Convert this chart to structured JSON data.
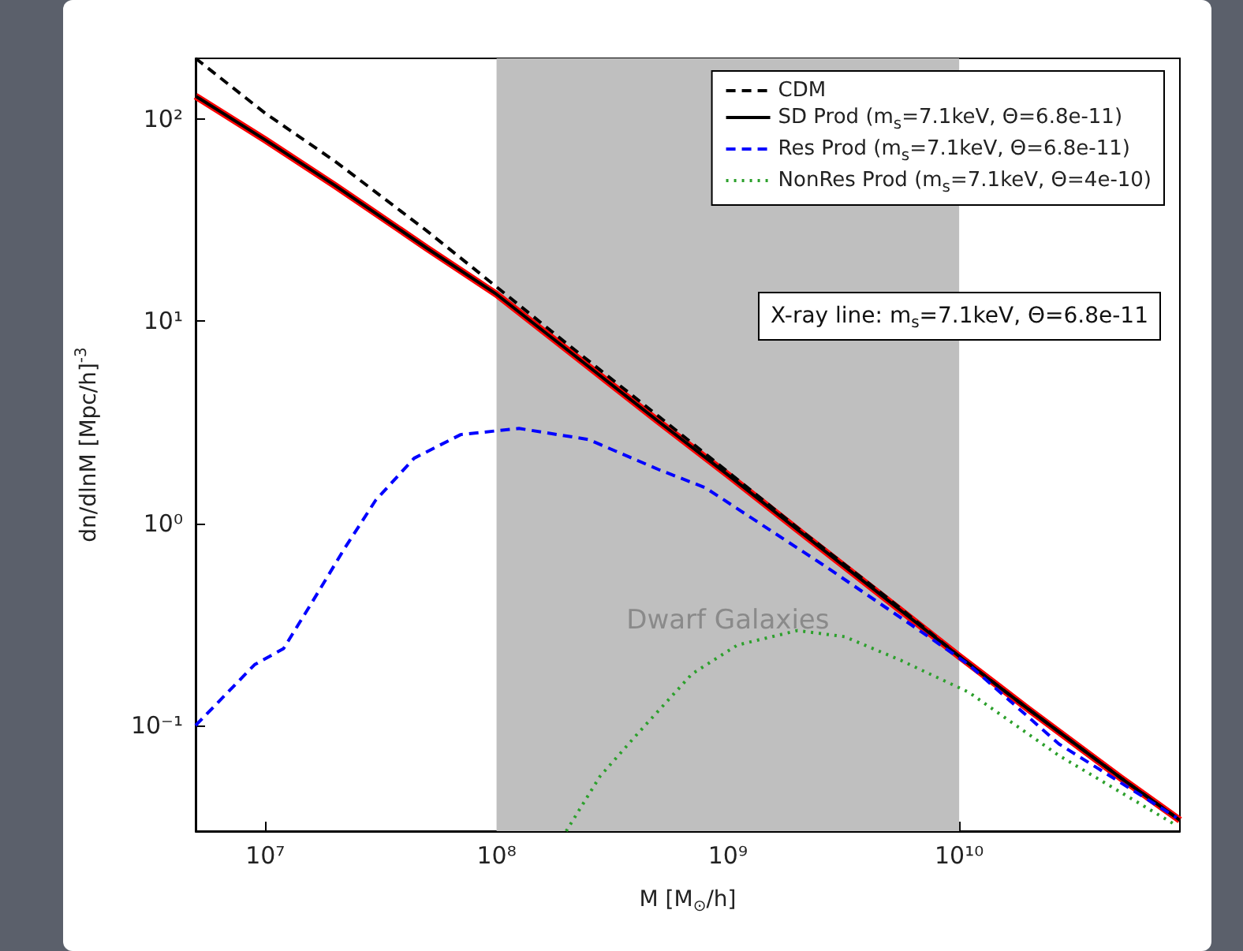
{
  "chart_data": {
    "type": "line",
    "xlabel": "M [M$_{⊙}$/h]",
    "ylabel": "dn/dlnM [Mpc/h]$^{-3}$",
    "log": "xy",
    "grid": false,
    "legend": "top right",
    "marker": "none",
    "xlim": [
      5000000,
      90000000000
    ],
    "ylim": [
      0.03,
      200
    ],
    "xticks": [
      {
        "value": 10000000,
        "label": "10⁷"
      },
      {
        "value": 100000000,
        "label": "10⁸"
      },
      {
        "value": 1000000000,
        "label": "10⁹"
      },
      {
        "value": 10000000000,
        "label": "10¹⁰"
      }
    ],
    "yticks": [
      {
        "value": 0.1,
        "label": "10⁻¹"
      },
      {
        "value": 1,
        "label": "10⁰"
      },
      {
        "value": 10,
        "label": "10¹"
      },
      {
        "value": 100,
        "label": "10²"
      }
    ],
    "bands": [
      {
        "axis": "x",
        "from": 100000000,
        "to": 10000000000,
        "label": "Dwarf Galaxies",
        "color": "#bfbfbf"
      }
    ],
    "annotations": [
      "X-ray line: m$_{s}$=7.1keV, Θ=6.8e-11"
    ],
    "series": [
      {
        "color": "#ff0000",
        "line_style": "solid",
        "x": [
          5000000,
          10000000,
          20000000,
          50000000,
          100000000,
          200000000,
          500000000,
          1000000000,
          2000000000,
          5000000000,
          10000000000,
          20000000000,
          50000000000,
          90000000000
        ],
        "values": [
          130,
          79,
          47,
          23,
          13.6,
          7.3,
          3.2,
          1.74,
          0.93,
          0.41,
          0.22,
          0.12,
          0.055,
          0.034
        ]
      },
      {
        "name": "CDM",
        "color": "#000000",
        "line_style": "dashed",
        "x": [
          5000000,
          10000000,
          20000000,
          50000000,
          100000000,
          200000000,
          500000000,
          1000000000,
          2000000000,
          5000000000,
          10000000000,
          20000000000,
          50000000000,
          90000000000
        ],
        "values": [
          200,
          107,
          62,
          28,
          14.8,
          7.8,
          3.4,
          1.8,
          0.95,
          0.42,
          0.22,
          0.12,
          0.055,
          0.034
        ]
      },
      {
        "name": "SD Prod (m$_{s}$=7.1keV, Θ=6.8e-11)",
        "color": "#000000",
        "line_style": "solid",
        "x": [
          5000000,
          10000000,
          20000000,
          50000000,
          100000000,
          200000000,
          500000000,
          1000000000,
          2000000000,
          5000000000,
          10000000000,
          20000000000,
          50000000000,
          90000000000
        ],
        "values": [
          130,
          79,
          47,
          23,
          13.6,
          7.3,
          3.2,
          1.74,
          0.93,
          0.41,
          0.22,
          0.12,
          0.055,
          0.034
        ]
      },
      {
        "name": "Res Prod (m$_{s}$=7.1keV, Θ=6.8e-11)",
        "color": "#0000ff",
        "line_style": "dashed",
        "x": [
          5000000,
          9000000,
          12000000,
          16000000,
          22000000,
          30000000,
          44000000,
          70000000,
          125000000,
          250000000,
          500000000,
          800000000,
          2600000000,
          6600000000,
          11000000000,
          27000000000,
          87000000000
        ],
        "values": [
          0.1,
          0.2,
          0.24,
          0.41,
          0.75,
          1.3,
          2.1,
          2.75,
          2.95,
          2.6,
          1.85,
          1.5,
          0.62,
          0.3,
          0.2,
          0.081,
          0.035
        ]
      },
      {
        "name": "NonRes Prod (m$_{s}$=7.1keV, Θ=4e-10)",
        "color": "#2ca02c",
        "line_style": "dotted",
        "x": [
          200000000,
          280000000,
          400000000,
          700000000,
          1100000000,
          2000000000,
          3200000000,
          5600000000,
          11000000000,
          27000000000,
          87000000000
        ],
        "values": [
          0.03,
          0.056,
          0.089,
          0.18,
          0.25,
          0.295,
          0.275,
          0.21,
          0.146,
          0.071,
          0.032
        ]
      }
    ]
  }
}
